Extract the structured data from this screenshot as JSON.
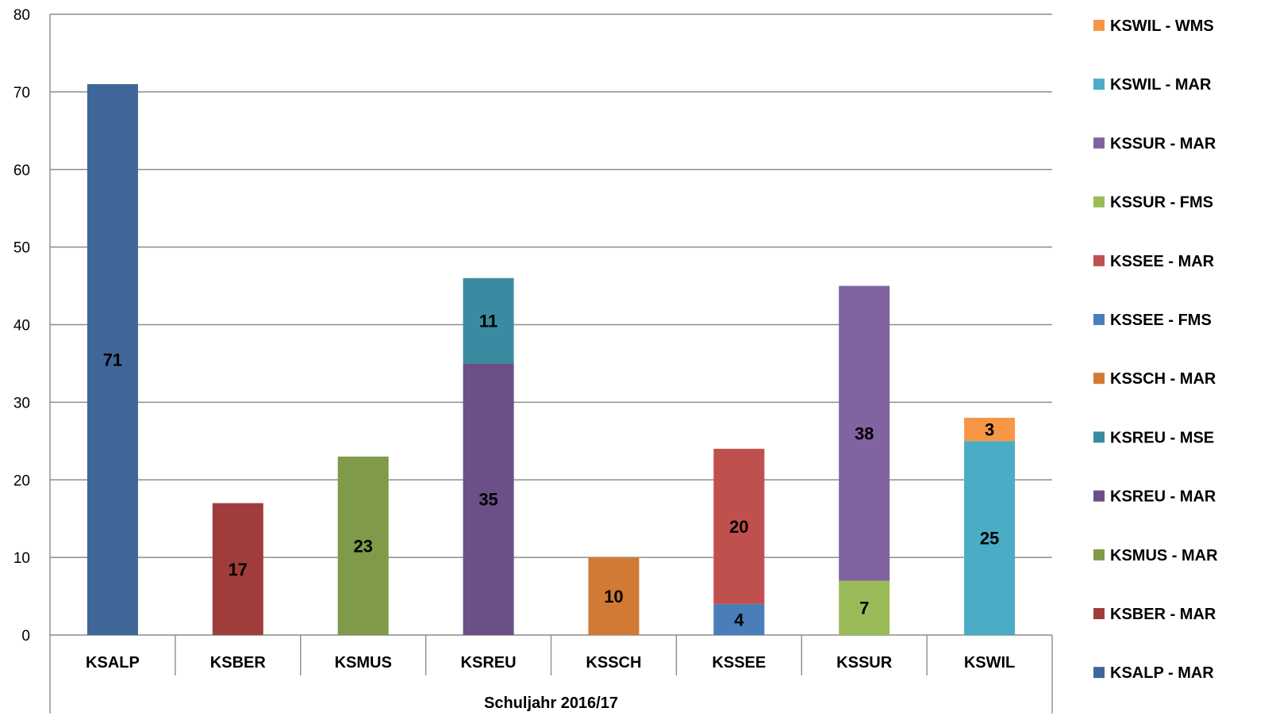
{
  "chart_data": {
    "type": "bar",
    "stacked": true,
    "title": "",
    "xlabel": "Schuljahr 2016/17",
    "ylabel": "",
    "ylim": [
      0,
      80
    ],
    "yticks": [
      0,
      10,
      20,
      30,
      40,
      50,
      60,
      70,
      80
    ],
    "grid": true,
    "legend_position": "right",
    "categories": [
      "KSALP",
      "KSBER",
      "KSMUS",
      "KSREU",
      "KSSCH",
      "KSSEE",
      "KSSUR",
      "KSWIL"
    ],
    "series": [
      {
        "name": "KSALP - MAR",
        "color": "#3F6698",
        "values": [
          71,
          null,
          null,
          null,
          null,
          null,
          null,
          null
        ]
      },
      {
        "name": "KSBER - MAR",
        "color": "#9E3D3B",
        "values": [
          null,
          17,
          null,
          null,
          null,
          null,
          null,
          null
        ]
      },
      {
        "name": "KSMUS - MAR",
        "color": "#7F9A48",
        "values": [
          null,
          null,
          23,
          null,
          null,
          null,
          null,
          null
        ]
      },
      {
        "name": "KSREU - MAR",
        "color": "#6A5087",
        "values": [
          null,
          null,
          null,
          35,
          null,
          null,
          null,
          null
        ]
      },
      {
        "name": "KSREU - MSE",
        "color": "#3A8BA2",
        "values": [
          null,
          null,
          null,
          11,
          null,
          null,
          null,
          null
        ]
      },
      {
        "name": "KSSCH - MAR",
        "color": "#D07A36",
        "values": [
          null,
          null,
          null,
          null,
          10,
          null,
          null,
          null
        ]
      },
      {
        "name": "KSSEE - FMS",
        "color": "#4A7EBB",
        "values": [
          null,
          null,
          null,
          null,
          null,
          4,
          null,
          null
        ]
      },
      {
        "name": "KSSEE - MAR",
        "color": "#C0504D",
        "values": [
          null,
          null,
          null,
          null,
          null,
          20,
          null,
          null
        ]
      },
      {
        "name": "KSSUR - FMS",
        "color": "#9BBB59",
        "values": [
          null,
          null,
          null,
          null,
          null,
          null,
          7,
          null
        ]
      },
      {
        "name": "KSSUR - MAR",
        "color": "#8064A2",
        "values": [
          null,
          null,
          null,
          null,
          null,
          null,
          38,
          null
        ]
      },
      {
        "name": "KSWIL - MAR",
        "color": "#4BACC6",
        "values": [
          null,
          null,
          null,
          null,
          null,
          null,
          null,
          25
        ]
      },
      {
        "name": "KSWIL - WMS",
        "color": "#F79646",
        "values": [
          null,
          null,
          null,
          null,
          null,
          null,
          null,
          3
        ]
      }
    ]
  }
}
